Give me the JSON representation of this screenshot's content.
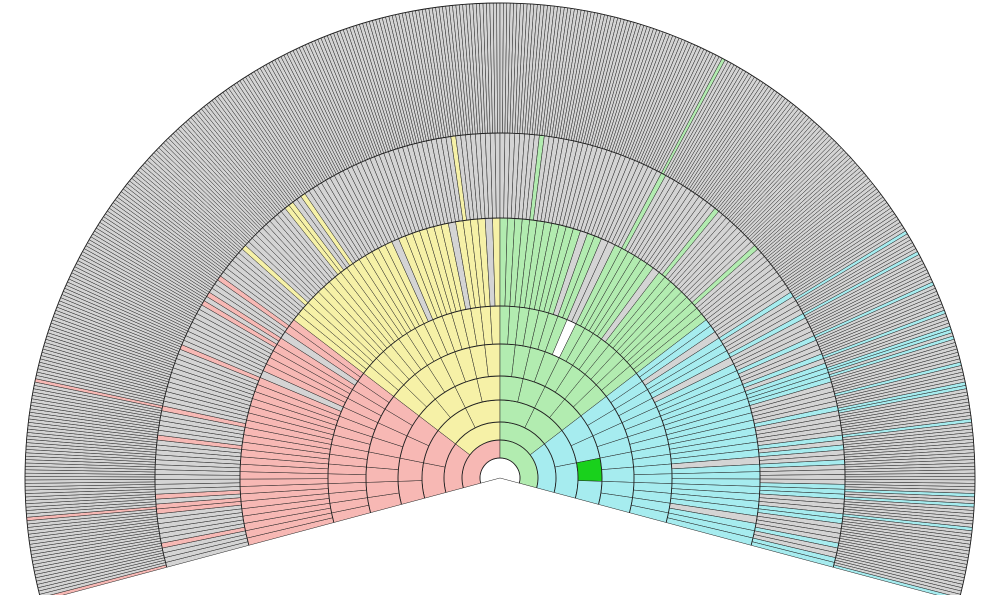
{
  "chart_data": {
    "type": "fan",
    "total_generations": 10,
    "arc_span_degrees": 210,
    "colors": {
      "paternal_grandfather": "#f7b8b4",
      "paternal_grandmother": "#f6f1a7",
      "maternal_grandfather": "#b2ecb0",
      "maternal_grandmother": "#a6ecef",
      "empty": "#ffffff",
      "unknown": "#d4d4d4",
      "highlight": "#19d11c",
      "line": "#222222"
    },
    "root_person": {
      "name": "",
      "generation": 1
    },
    "highlighted_person": {
      "generation": 5,
      "quadrant": "maternal_grandmother"
    }
  }
}
